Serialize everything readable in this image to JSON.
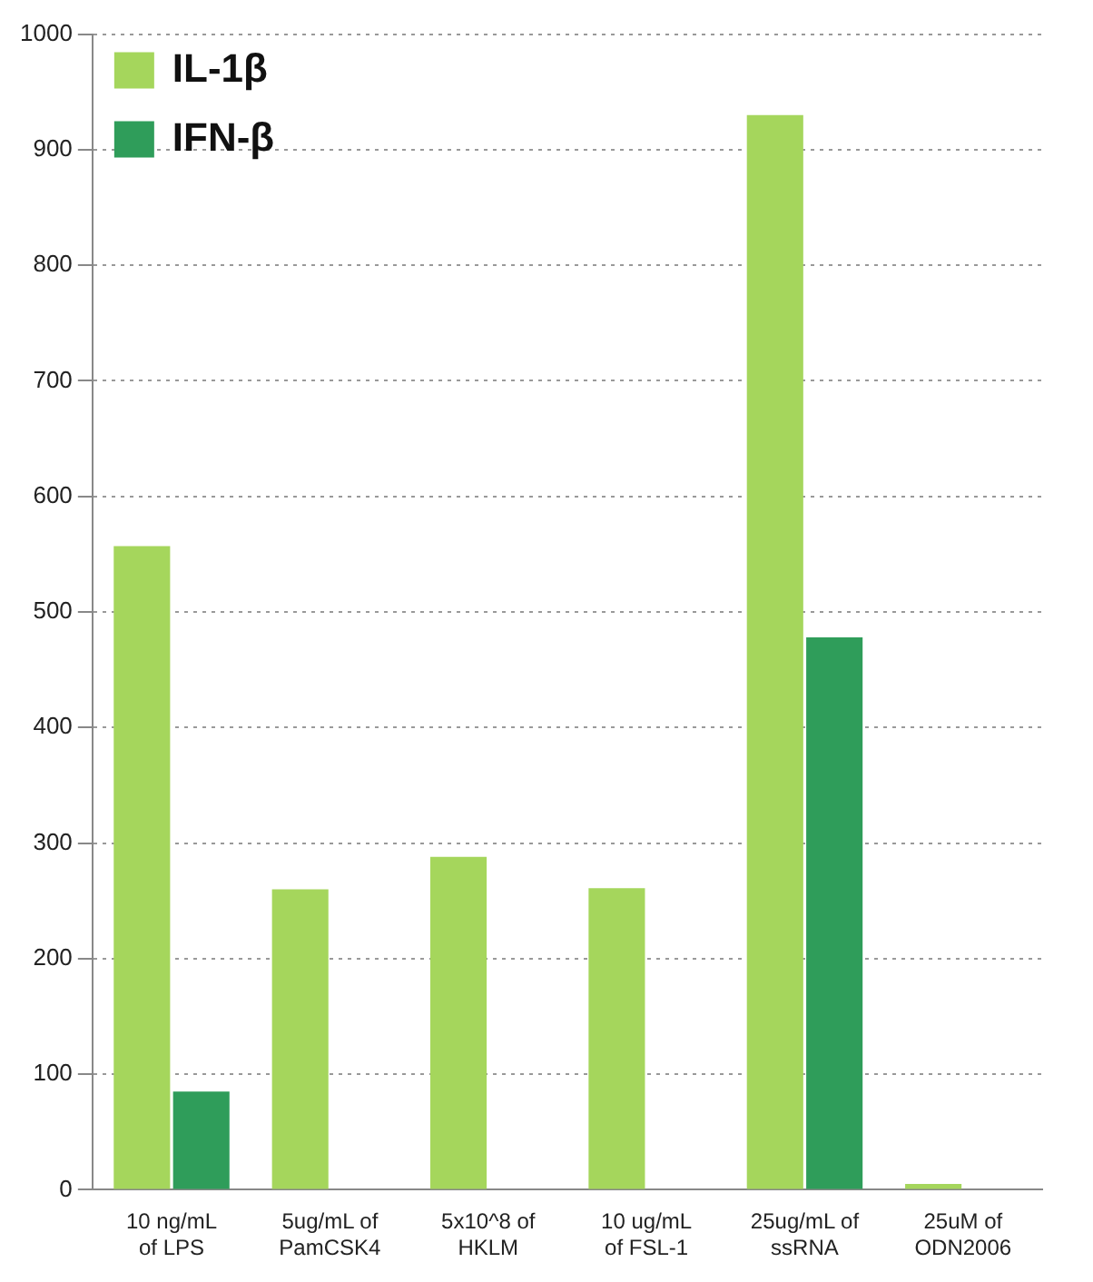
{
  "chart_data": {
    "type": "bar",
    "categories": [
      "10 ng/mL\nof LPS",
      "5ug/mL of\nPamCSK4",
      "5x10^8 of\nHKLM",
      "10 ug/mL\nof FSL-1",
      "25ug/mL of\nssRNA",
      "25uM of\nODN2006"
    ],
    "series": [
      {
        "name": "IL-1β",
        "color": "#a5d65c",
        "values": [
          557,
          260,
          288,
          261,
          930,
          5
        ]
      },
      {
        "name": "IFN-β",
        "color": "#2f9d5a",
        "values": [
          85,
          0,
          0,
          0,
          478,
          0
        ]
      }
    ],
    "ylim": [
      0,
      1000
    ],
    "yticks": [
      0,
      100,
      200,
      300,
      400,
      500,
      600,
      700,
      800,
      900,
      1000
    ],
    "grid": "y",
    "legend": "top left"
  }
}
